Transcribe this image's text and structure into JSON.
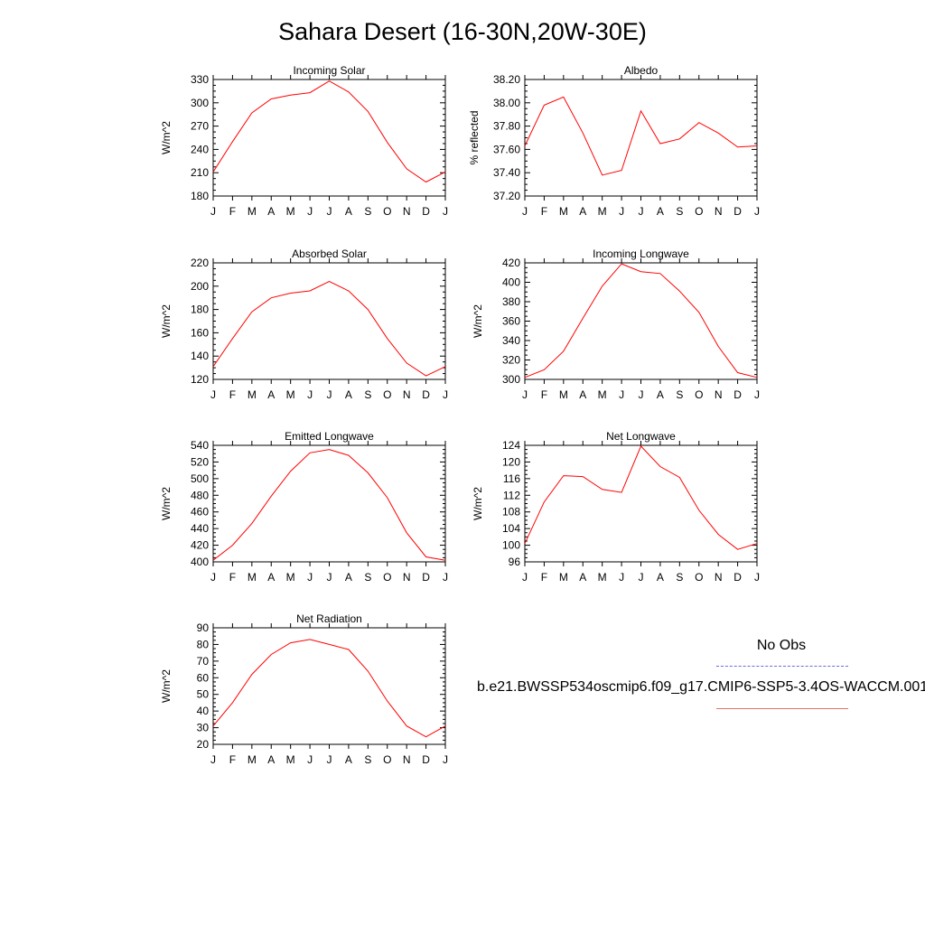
{
  "title": "Sahara Desert (16-30N,20W-30E)",
  "legend": {
    "obs_label": "No Obs",
    "model_label": "b.e21.BWSSP534oscmip6.f09_g17.CMIP6-SSP5-3.4OS-WACCM.001",
    "obs_color": "#6a6ae0",
    "model_color": "#e07070"
  },
  "chart_data": [
    {
      "id": "incoming-solar",
      "type": "line",
      "title": "Incoming Solar",
      "ylabel": "W/m^2",
      "categories": [
        "J",
        "F",
        "M",
        "A",
        "M",
        "J",
        "J",
        "A",
        "S",
        "O",
        "N",
        "D",
        "J"
      ],
      "ylim": [
        180,
        330
      ],
      "yticks": [
        180,
        210,
        240,
        270,
        300,
        330
      ],
      "decimals": 0,
      "values": [
        211,
        250,
        287,
        305,
        310,
        313,
        328,
        314,
        289,
        249,
        215,
        198,
        211
      ],
      "color": "#ff0000"
    },
    {
      "id": "albedo",
      "type": "line",
      "title": "Albedo",
      "ylabel": "% reflected",
      "categories": [
        "J",
        "F",
        "M",
        "A",
        "M",
        "J",
        "J",
        "A",
        "S",
        "O",
        "N",
        "D",
        "J"
      ],
      "ylim": [
        37.2,
        38.2
      ],
      "yticks": [
        37.2,
        37.4,
        37.6,
        37.8,
        38.0,
        38.2
      ],
      "decimals": 2,
      "values": [
        37.63,
        37.98,
        38.05,
        37.74,
        37.38,
        37.42,
        37.93,
        37.65,
        37.69,
        37.83,
        37.74,
        37.62,
        37.63
      ],
      "color": "#ff0000"
    },
    {
      "id": "absorbed-solar",
      "type": "line",
      "title": "Absorbed Solar",
      "ylabel": "W/m^2",
      "categories": [
        "J",
        "F",
        "M",
        "A",
        "M",
        "J",
        "J",
        "A",
        "S",
        "O",
        "N",
        "D",
        "J"
      ],
      "ylim": [
        120,
        220
      ],
      "yticks": [
        120,
        140,
        160,
        180,
        200,
        220
      ],
      "decimals": 0,
      "values": [
        131,
        155,
        178,
        190,
        194,
        196,
        204,
        196,
        180,
        155,
        134,
        123,
        131
      ],
      "color": "#ff0000"
    },
    {
      "id": "incoming-longwave",
      "type": "line",
      "title": "Incoming Longwave",
      "ylabel": "W/m^2",
      "categories": [
        "J",
        "F",
        "M",
        "A",
        "M",
        "J",
        "J",
        "A",
        "S",
        "O",
        "N",
        "D",
        "J"
      ],
      "ylim": [
        300,
        420
      ],
      "yticks": [
        300,
        320,
        340,
        360,
        380,
        400,
        420
      ],
      "decimals": 0,
      "values": [
        302,
        310,
        329,
        363,
        396,
        419,
        411,
        409,
        391,
        369,
        334,
        307,
        302
      ],
      "color": "#ff0000"
    },
    {
      "id": "emitted-longwave",
      "type": "line",
      "title": "Emitted Longwave",
      "ylabel": "W/m^2",
      "categories": [
        "J",
        "F",
        "M",
        "A",
        "M",
        "J",
        "J",
        "A",
        "S",
        "O",
        "N",
        "D",
        "J"
      ],
      "ylim": [
        400,
        540
      ],
      "yticks": [
        400,
        420,
        440,
        460,
        480,
        500,
        520,
        540
      ],
      "decimals": 0,
      "values": [
        402,
        420,
        446,
        479,
        509,
        531,
        535,
        528,
        507,
        477,
        435,
        406,
        402
      ],
      "color": "#ff0000"
    },
    {
      "id": "net-longwave",
      "type": "line",
      "title": "Net Longwave",
      "ylabel": "W/m^2",
      "categories": [
        "J",
        "F",
        "M",
        "A",
        "M",
        "J",
        "J",
        "A",
        "S",
        "O",
        "N",
        "D",
        "J"
      ],
      "ylim": [
        96,
        124
      ],
      "yticks": [
        96,
        100,
        104,
        108,
        112,
        116,
        120,
        124
      ],
      "decimals": 0,
      "values": [
        100.4,
        110.4,
        116.7,
        116.5,
        113.4,
        112.7,
        123.8,
        118.9,
        116.3,
        108.4,
        102.6,
        99.0,
        100.4
      ],
      "color": "#ff0000"
    },
    {
      "id": "net-radiation",
      "type": "line",
      "title": "Net Radiation",
      "ylabel": "W/m^2",
      "categories": [
        "J",
        "F",
        "M",
        "A",
        "M",
        "J",
        "J",
        "A",
        "S",
        "O",
        "N",
        "D",
        "J"
      ],
      "ylim": [
        20,
        90
      ],
      "yticks": [
        20,
        30,
        40,
        50,
        60,
        70,
        80,
        90
      ],
      "decimals": 0,
      "values": [
        31,
        45,
        62,
        74,
        81,
        83,
        80,
        77,
        64,
        46,
        31,
        24.5,
        31
      ],
      "color": "#ff0000"
    }
  ]
}
